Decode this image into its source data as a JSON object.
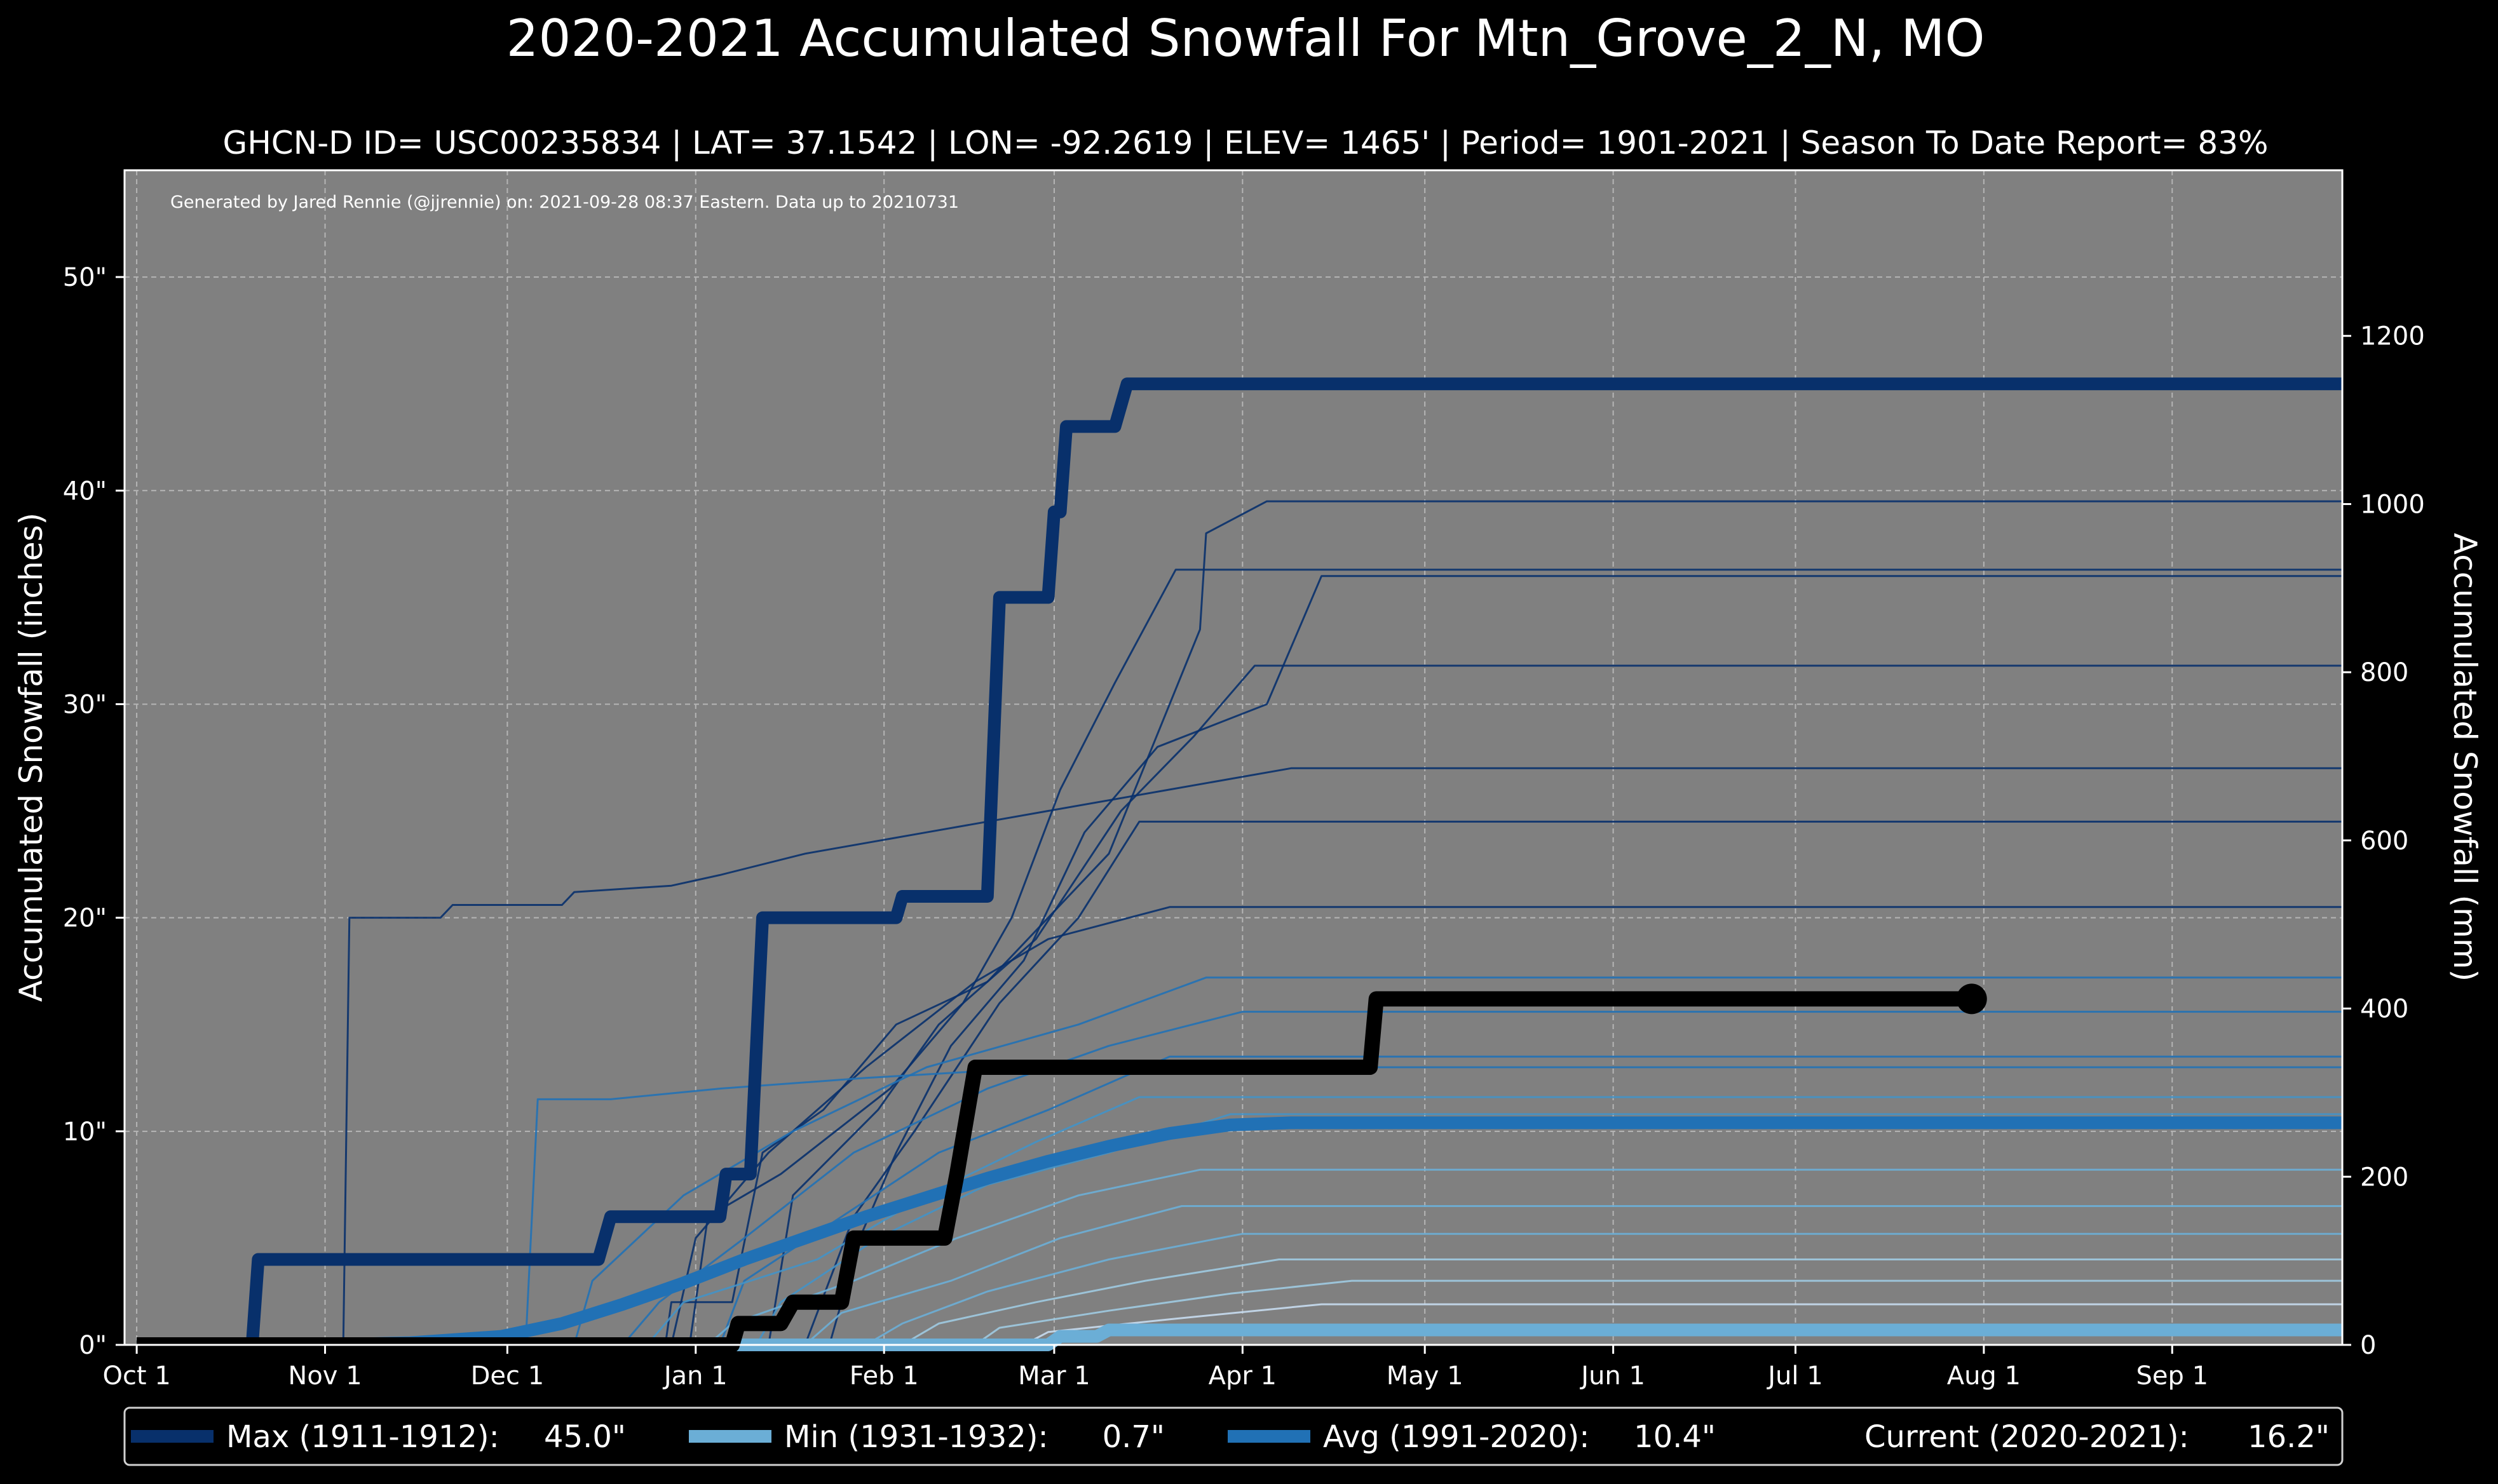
{
  "chart_data": {
    "type": "line",
    "title": "2020-2021 Accumulated Snowfall For Mtn_Grove_2_N, MO",
    "subtitle": "GHCN-D ID= USC00235834 | LAT= 37.1542 | LON= -92.2619 | ELEV= 1465' | Period= 1901-2021 | Season To Date Report= 83%",
    "credit": "Generated by Jared Rennie (@jjrennie) on: 2021-09-28 08:37 Eastern. Data up to 20210731",
    "ylabel": "Accumulated Snowfall (inches)",
    "ylabel_right": "Accumulated Snowfall (mm)",
    "x_unit": "day of season (Oct 1 = 0)",
    "xlim": [
      -2,
      363
    ],
    "ylim": [
      0,
      55
    ],
    "ylim_right_mm": [
      0,
      1397
    ],
    "x_ticks": [
      {
        "label": "Oct 1",
        "day": 0
      },
      {
        "label": "Nov 1",
        "day": 31
      },
      {
        "label": "Dec 1",
        "day": 61
      },
      {
        "label": "Jan 1",
        "day": 92
      },
      {
        "label": "Feb 1",
        "day": 123
      },
      {
        "label": "Mar 1",
        "day": 151
      },
      {
        "label": "Apr 1",
        "day": 182
      },
      {
        "label": "May 1",
        "day": 212
      },
      {
        "label": "Jun 1",
        "day": 243
      },
      {
        "label": "Jul 1",
        "day": 273
      },
      {
        "label": "Aug 1",
        "day": 304
      },
      {
        "label": "Sep 1",
        "day": 335
      }
    ],
    "y_ticks": [
      {
        "label": "0\"",
        "value": 0
      },
      {
        "label": "10\"",
        "value": 10
      },
      {
        "label": "20\"",
        "value": 20
      },
      {
        "label": "30\"",
        "value": 30
      },
      {
        "label": "40\"",
        "value": 40
      },
      {
        "label": "50\"",
        "value": 50
      }
    ],
    "y_ticks_right": [
      {
        "label": "0",
        "value": 0
      },
      {
        "label": "200",
        "value": 200
      },
      {
        "label": "400",
        "value": 400
      },
      {
        "label": "600",
        "value": 600
      },
      {
        "label": "800",
        "value": 800
      },
      {
        "label": "1000",
        "value": 1000
      },
      {
        "label": "1200",
        "value": 1200
      }
    ],
    "series": [
      {
        "name": "Max (1911-1912)",
        "color": "#08306b",
        "points": [
          [
            0,
            0
          ],
          [
            19,
            0
          ],
          [
            20,
            4
          ],
          [
            76,
            4
          ],
          [
            78,
            6
          ],
          [
            96,
            6
          ],
          [
            97,
            8
          ],
          [
            101,
            8
          ],
          [
            103,
            20
          ],
          [
            125,
            20
          ],
          [
            126,
            21
          ],
          [
            140,
            21
          ],
          [
            142,
            35
          ],
          [
            150,
            35
          ],
          [
            151,
            39
          ],
          [
            152,
            39
          ],
          [
            153,
            43
          ],
          [
            161,
            43
          ],
          [
            163,
            45
          ],
          [
            363,
            45
          ]
        ]
      },
      {
        "name": "Min (1931-1932)",
        "color": "#6baed6",
        "points": [
          [
            0,
            0
          ],
          [
            150,
            0
          ],
          [
            152,
            0.4
          ],
          [
            158,
            0.4
          ],
          [
            160,
            0.7
          ],
          [
            363,
            0.7
          ]
        ]
      },
      {
        "name": "Avg (1991-2020)",
        "color": "#2171b5",
        "points": [
          [
            0,
            0
          ],
          [
            30,
            0
          ],
          [
            45,
            0.1
          ],
          [
            60,
            0.4
          ],
          [
            70,
            1.0
          ],
          [
            80,
            1.9
          ],
          [
            90,
            2.9
          ],
          [
            100,
            4.0
          ],
          [
            110,
            5.0
          ],
          [
            120,
            6.0
          ],
          [
            130,
            6.9
          ],
          [
            140,
            7.8
          ],
          [
            150,
            8.6
          ],
          [
            160,
            9.3
          ],
          [
            170,
            9.9
          ],
          [
            180,
            10.3
          ],
          [
            190,
            10.4
          ],
          [
            363,
            10.4
          ]
        ]
      },
      {
        "name": "Current (2020-2021)",
        "color": "#000000",
        "points": [
          [
            0,
            0
          ],
          [
            98,
            0
          ],
          [
            99,
            1
          ],
          [
            106,
            1
          ],
          [
            108,
            2
          ],
          [
            116,
            2
          ],
          [
            118,
            5
          ],
          [
            133,
            5
          ],
          [
            135,
            8
          ],
          [
            138,
            13
          ],
          [
            203,
            13
          ],
          [
            204,
            16.2
          ],
          [
            302,
            16.2
          ]
        ]
      }
    ],
    "legend": [
      {
        "name": "Max (1911-1912):",
        "value": "45.0\"",
        "color": "#08306b"
      },
      {
        "name": "Min (1931-1932):",
        "value": "0.7\"",
        "color": "#6baed6"
      },
      {
        "name": "Avg (1991-2020):",
        "value": "10.4\"",
        "color": "#2171b5"
      },
      {
        "name": "Current (2020-2021):",
        "value": "16.2\"",
        "color": "#000000"
      }
    ],
    "legend_position": "bottom",
    "background_lines": [
      {
        "color": "#08306b",
        "points": [
          [
            0,
            0
          ],
          [
            87,
            0
          ],
          [
            88,
            2
          ],
          [
            98,
            2
          ],
          [
            103,
            9
          ],
          [
            113,
            11
          ],
          [
            125,
            15
          ],
          [
            140,
            17
          ],
          [
            160,
            23
          ],
          [
            175,
            33.5
          ],
          [
            176,
            38
          ],
          [
            186,
            39.5
          ],
          [
            363,
            39.5
          ]
        ]
      },
      {
        "color": "#08306b",
        "points": [
          [
            0,
            0
          ],
          [
            91,
            0
          ],
          [
            94,
            6
          ],
          [
            106,
            8
          ],
          [
            124,
            12
          ],
          [
            136,
            16
          ],
          [
            144,
            20
          ],
          [
            152,
            26
          ],
          [
            161,
            31
          ],
          [
            171,
            36.3
          ],
          [
            363,
            36.3
          ]
        ]
      },
      {
        "color": "#08306b",
        "points": [
          [
            0,
            0
          ],
          [
            114,
            0
          ],
          [
            119,
            5
          ],
          [
            125,
            9
          ],
          [
            134,
            14
          ],
          [
            146,
            18
          ],
          [
            156,
            24
          ],
          [
            168,
            28
          ],
          [
            186,
            30
          ],
          [
            195,
            36
          ],
          [
            363,
            36
          ]
        ]
      },
      {
        "color": "#08306b",
        "points": [
          [
            0,
            0
          ],
          [
            34,
            0
          ],
          [
            35,
            20
          ],
          [
            50,
            20
          ],
          [
            52,
            20.6
          ],
          [
            70,
            20.6
          ],
          [
            72,
            21.2
          ],
          [
            88,
            21.5
          ],
          [
            96,
            22
          ],
          [
            110,
            23
          ],
          [
            130,
            24
          ],
          [
            150,
            25
          ],
          [
            170,
            26
          ],
          [
            190,
            27
          ],
          [
            363,
            27
          ]
        ]
      },
      {
        "color": "#08306b",
        "points": [
          [
            0,
            0
          ],
          [
            104,
            0
          ],
          [
            108,
            7
          ],
          [
            122,
            11
          ],
          [
            132,
            15
          ],
          [
            148,
            19
          ],
          [
            162,
            25
          ],
          [
            174,
            28.5
          ],
          [
            184,
            31.8
          ],
          [
            363,
            31.8
          ]
        ]
      },
      {
        "color": "#08306b",
        "points": [
          [
            0,
            0
          ],
          [
            110,
            0
          ],
          [
            118,
            6
          ],
          [
            128,
            10
          ],
          [
            142,
            16
          ],
          [
            155,
            20
          ],
          [
            165,
            24.5
          ],
          [
            363,
            24.5
          ]
        ]
      },
      {
        "color": "#08306b",
        "points": [
          [
            0,
            0
          ],
          [
            88,
            0
          ],
          [
            92,
            5
          ],
          [
            104,
            9
          ],
          [
            120,
            13
          ],
          [
            138,
            17
          ],
          [
            150,
            19
          ],
          [
            170,
            20.5
          ],
          [
            363,
            20.5
          ]
        ]
      },
      {
        "color": "#2171b5",
        "points": [
          [
            0,
            0
          ],
          [
            72,
            0
          ],
          [
            75,
            3
          ],
          [
            90,
            7
          ],
          [
            108,
            10
          ],
          [
            130,
            13
          ],
          [
            155,
            15
          ],
          [
            176,
            17.2
          ],
          [
            363,
            17.2
          ]
        ]
      },
      {
        "color": "#2171b5",
        "points": [
          [
            0,
            0
          ],
          [
            80,
            0
          ],
          [
            86,
            2
          ],
          [
            100,
            5
          ],
          [
            118,
            9
          ],
          [
            140,
            12
          ],
          [
            160,
            14
          ],
          [
            182,
            15.6
          ],
          [
            363,
            15.6
          ]
        ]
      },
      {
        "color": "#2171b5",
        "points": [
          [
            0,
            0
          ],
          [
            96,
            0
          ],
          [
            100,
            3
          ],
          [
            116,
            6
          ],
          [
            132,
            9
          ],
          [
            150,
            11
          ],
          [
            170,
            13.5
          ],
          [
            363,
            13.5
          ]
        ]
      },
      {
        "color": "#2171b5",
        "points": [
          [
            0,
            0
          ],
          [
            64,
            0
          ],
          [
            66,
            11.5
          ],
          [
            78,
            11.5
          ],
          [
            96,
            12
          ],
          [
            120,
            12.5
          ],
          [
            150,
            13
          ],
          [
            363,
            13
          ]
        ]
      },
      {
        "color": "#4292c6",
        "points": [
          [
            0,
            0
          ],
          [
            84,
            0
          ],
          [
            90,
            2
          ],
          [
            112,
            4
          ],
          [
            130,
            7
          ],
          [
            148,
            9.5
          ],
          [
            165,
            11.6
          ],
          [
            363,
            11.6
          ]
        ]
      },
      {
        "color": "#4292c6",
        "points": [
          [
            0,
            0
          ],
          [
            102,
            0
          ],
          [
            106,
            2
          ],
          [
            122,
            5
          ],
          [
            140,
            7.5
          ],
          [
            160,
            9
          ],
          [
            180,
            10.8
          ],
          [
            363,
            10.8
          ]
        ]
      },
      {
        "color": "#6baed6",
        "points": [
          [
            0,
            0
          ],
          [
            94,
            0
          ],
          [
            98,
            1
          ],
          [
            118,
            3
          ],
          [
            135,
            5
          ],
          [
            155,
            7
          ],
          [
            175,
            8.2
          ],
          [
            363,
            8.2
          ]
        ]
      },
      {
        "color": "#6baed6",
        "points": [
          [
            0,
            0
          ],
          [
            110,
            0
          ],
          [
            116,
            1.5
          ],
          [
            134,
            3
          ],
          [
            152,
            5
          ],
          [
            172,
            6.5
          ],
          [
            363,
            6.5
          ]
        ]
      },
      {
        "color": "#6baed6",
        "points": [
          [
            0,
            0
          ],
          [
            120,
            0
          ],
          [
            126,
            1
          ],
          [
            140,
            2.5
          ],
          [
            160,
            4
          ],
          [
            182,
            5.2
          ],
          [
            363,
            5.2
          ]
        ]
      },
      {
        "color": "#9ecae1",
        "points": [
          [
            0,
            0
          ],
          [
            126,
            0
          ],
          [
            132,
            1
          ],
          [
            148,
            2
          ],
          [
            166,
            3
          ],
          [
            188,
            4
          ],
          [
            363,
            4
          ]
        ]
      },
      {
        "color": "#9ecae1",
        "points": [
          [
            0,
            0
          ],
          [
            138,
            0
          ],
          [
            142,
            0.8
          ],
          [
            160,
            1.6
          ],
          [
            180,
            2.4
          ],
          [
            200,
            3
          ],
          [
            363,
            3
          ]
        ]
      },
      {
        "color": "#c6dbef",
        "points": [
          [
            0,
            0
          ],
          [
            146,
            0
          ],
          [
            150,
            0.6
          ],
          [
            170,
            1.2
          ],
          [
            195,
            1.9
          ],
          [
            363,
            1.9
          ]
        ]
      }
    ]
  }
}
